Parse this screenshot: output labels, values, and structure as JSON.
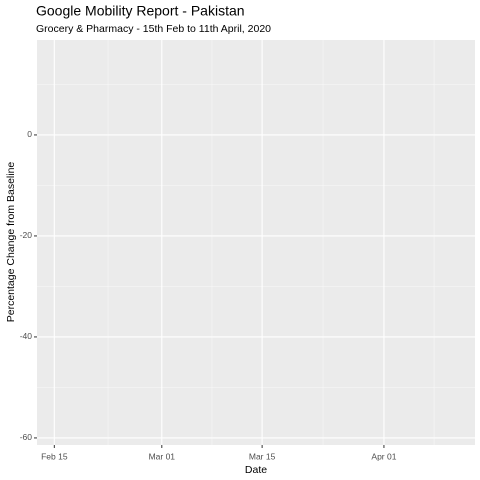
{
  "chart_data": {
    "type": "line",
    "title": "Google Mobility Report - Pakistan",
    "subtitle": "Grocery & Pharmacy - 15th Feb to 11th April, 2020",
    "x_label": "Date",
    "y_label": "Percentage Change from Baseline",
    "xlim": [
      "2020-02-12T14:00:00Z",
      "2020-04-13T17:00:00Z"
    ],
    "xticks": [
      {
        "value": "2020-02-15T00:00:00Z",
        "label": "Feb 15"
      },
      {
        "value": "2020-03-01T00:00:00Z",
        "label": "Mar 01"
      },
      {
        "value": "2020-03-15T00:00:00Z",
        "label": "Mar 15"
      },
      {
        "value": "2020-04-01T00:00:00Z",
        "label": "Apr 01"
      }
    ],
    "xminor": [
      "2020-02-22T12:00:00Z",
      "2020-03-08T00:00:00Z",
      "2020-03-23T12:00:00Z",
      "2020-04-08T00:00:00Z"
    ],
    "ylim": [
      -61.4,
      18.8
    ],
    "yticks": [
      0,
      -20,
      -40,
      -60
    ],
    "yminor": [
      10,
      -10,
      -30,
      -50
    ],
    "grid": true
  }
}
